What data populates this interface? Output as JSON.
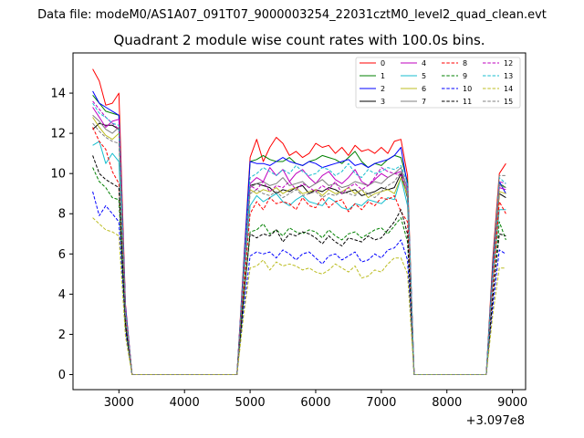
{
  "figure": {
    "suptitle": "Data file: modeM0/AS1A07_091T07_9000003254_22031cztM0_level2_quad_clean.evt"
  },
  "chart_data": {
    "type": "line",
    "title": "Quadrant 2 module wise count rates with 100.0s bins.",
    "xlabel": "",
    "ylabel": "",
    "x_offset_label": "+3.097e8",
    "xlim": [
      2300,
      9200
    ],
    "ylim": [
      -0.75,
      16
    ],
    "xticks": [
      3000,
      4000,
      5000,
      6000,
      7000,
      8000,
      9000
    ],
    "yticks": [
      0,
      2,
      4,
      6,
      8,
      10,
      12,
      14
    ],
    "grid": false,
    "legend_position": "top-right",
    "legend_columns": 4,
    "x": [
      2600,
      2700,
      2800,
      2900,
      3000,
      3100,
      3200,
      3300,
      3400,
      3500,
      3600,
      3700,
      3800,
      3900,
      4000,
      4100,
      4200,
      4300,
      4400,
      4500,
      4600,
      4700,
      4800,
      4900,
      5000,
      5100,
      5200,
      5300,
      5400,
      5500,
      5600,
      5700,
      5800,
      5900,
      6000,
      6100,
      6200,
      6300,
      6400,
      6500,
      6600,
      6700,
      6800,
      6900,
      7000,
      7100,
      7200,
      7300,
      7400,
      7500,
      7600,
      7700,
      7800,
      7900,
      8000,
      8100,
      8200,
      8300,
      8400,
      8500,
      8600,
      8700,
      8800,
      8900
    ],
    "series": [
      {
        "name": "0",
        "color": "#ff0000",
        "dash": "solid",
        "values": [
          15.2,
          14.6,
          13.4,
          13.5,
          14.0,
          3.5,
          0,
          0,
          0,
          0,
          0,
          0,
          0,
          0,
          0,
          0,
          0,
          0,
          0,
          0,
          0,
          0,
          0,
          5.5,
          10.8,
          11.7,
          10.6,
          11.3,
          11.8,
          11.5,
          10.9,
          11.1,
          10.8,
          11.0,
          11.5,
          11.3,
          11.4,
          11.0,
          11.3,
          10.9,
          11.4,
          11.1,
          11.2,
          11.0,
          11.3,
          11.0,
          11.6,
          11.7,
          9.9,
          0,
          0,
          0,
          0,
          0,
          0,
          0,
          0,
          0,
          0,
          0,
          0,
          5.8,
          10.0,
          10.5
        ]
      },
      {
        "name": "1",
        "color": "#008000",
        "dash": "solid",
        "values": [
          13.9,
          13.5,
          13.1,
          13.0,
          12.9,
          3.3,
          0,
          0,
          0,
          0,
          0,
          0,
          0,
          0,
          0,
          0,
          0,
          0,
          0,
          0,
          0,
          0,
          0,
          5.2,
          10.6,
          10.7,
          10.9,
          10.7,
          10.6,
          10.6,
          10.8,
          10.5,
          10.4,
          10.6,
          10.7,
          10.9,
          10.8,
          10.7,
          10.5,
          10.8,
          11.1,
          10.6,
          10.3,
          10.5,
          10.4,
          10.7,
          10.9,
          10.8,
          9.6,
          0,
          0,
          0,
          0,
          0,
          0,
          0,
          0,
          0,
          0,
          0,
          0,
          5.5,
          9.5,
          9.3
        ]
      },
      {
        "name": "2",
        "color": "#0000ff",
        "dash": "solid",
        "values": [
          14.1,
          13.5,
          13.3,
          13.1,
          12.9,
          3.4,
          0,
          0,
          0,
          0,
          0,
          0,
          0,
          0,
          0,
          0,
          0,
          0,
          0,
          0,
          0,
          0,
          0,
          5.3,
          10.6,
          10.5,
          10.5,
          10.4,
          10.6,
          10.8,
          10.6,
          10.5,
          10.4,
          10.6,
          10.5,
          10.3,
          10.4,
          10.5,
          10.6,
          10.7,
          10.4,
          10.5,
          10.3,
          10.5,
          10.6,
          10.7,
          10.9,
          11.3,
          9.4,
          0,
          0,
          0,
          0,
          0,
          0,
          0,
          0,
          0,
          0,
          0,
          0,
          5.4,
          9.6,
          9.0
        ]
      },
      {
        "name": "3",
        "color": "#000000",
        "dash": "solid",
        "values": [
          12.2,
          12.5,
          12.4,
          12.4,
          12.2,
          3.1,
          0,
          0,
          0,
          0,
          0,
          0,
          0,
          0,
          0,
          0,
          0,
          0,
          0,
          0,
          0,
          0,
          0,
          4.9,
          9.4,
          9.5,
          9.4,
          9.3,
          9.0,
          9.2,
          9.1,
          9.3,
          9.4,
          9.0,
          9.2,
          9.1,
          9.3,
          9.2,
          9.0,
          9.1,
          9.2,
          8.9,
          9.0,
          9.1,
          9.3,
          9.2,
          9.3,
          10.0,
          8.8,
          0,
          0,
          0,
          0,
          0,
          0,
          0,
          0,
          0,
          0,
          0,
          0,
          5.0,
          9.0,
          8.8
        ]
      },
      {
        "name": "4",
        "color": "#bf00bf",
        "dash": "solid",
        "values": [
          13.3,
          12.8,
          12.3,
          12.6,
          12.7,
          3.2,
          0,
          0,
          0,
          0,
          0,
          0,
          0,
          0,
          0,
          0,
          0,
          0,
          0,
          0,
          0,
          0,
          0,
          5.0,
          9.5,
          9.8,
          9.6,
          10.3,
          9.9,
          10.2,
          9.6,
          10.0,
          10.2,
          9.8,
          9.5,
          9.9,
          10.1,
          9.7,
          9.5,
          9.8,
          10.2,
          9.6,
          9.4,
          9.7,
          10.0,
          9.8,
          10.0,
          10.1,
          9.3,
          0,
          0,
          0,
          0,
          0,
          0,
          0,
          0,
          0,
          0,
          0,
          0,
          5.1,
          9.3,
          9.2
        ]
      },
      {
        "name": "5",
        "color": "#17becf",
        "dash": "solid",
        "values": [
          11.4,
          11.6,
          10.5,
          11.0,
          10.6,
          3.0,
          0,
          0,
          0,
          0,
          0,
          0,
          0,
          0,
          0,
          0,
          0,
          0,
          0,
          0,
          0,
          0,
          0,
          4.5,
          8.4,
          8.9,
          8.6,
          8.8,
          9.0,
          8.6,
          8.4,
          8.7,
          8.9,
          8.6,
          8.5,
          8.4,
          8.8,
          8.6,
          8.3,
          8.2,
          8.5,
          8.4,
          8.7,
          8.6,
          8.5,
          8.8,
          8.7,
          9.8,
          8.4,
          0,
          0,
          0,
          0,
          0,
          0,
          0,
          0,
          0,
          0,
          0,
          0,
          4.7,
          8.2,
          8.2
        ]
      },
      {
        "name": "6",
        "color": "#bcbd22",
        "dash": "solid",
        "values": [
          12.8,
          12.3,
          11.9,
          11.7,
          12.0,
          3.1,
          0,
          0,
          0,
          0,
          0,
          0,
          0,
          0,
          0,
          0,
          0,
          0,
          0,
          0,
          0,
          0,
          0,
          4.8,
          9.2,
          9.0,
          9.2,
          9.1,
          9.3,
          9.0,
          9.2,
          9.3,
          9.0,
          9.1,
          9.2,
          8.9,
          9.2,
          9.0,
          9.1,
          9.3,
          9.0,
          9.2,
          8.8,
          9.0,
          9.1,
          9.2,
          9.0,
          9.8,
          8.9,
          0,
          0,
          0,
          0,
          0,
          0,
          0,
          0,
          0,
          0,
          0,
          0,
          4.9,
          9.1,
          9.0
        ]
      },
      {
        "name": "7",
        "color": "#7f7f7f",
        "dash": "solid",
        "values": [
          12.9,
          12.6,
          12.2,
          12.0,
          12.3,
          3.2,
          0,
          0,
          0,
          0,
          0,
          0,
          0,
          0,
          0,
          0,
          0,
          0,
          0,
          0,
          0,
          0,
          0,
          5.0,
          9.3,
          9.5,
          9.6,
          9.4,
          9.5,
          9.8,
          9.4,
          9.5,
          9.6,
          9.3,
          9.5,
          9.7,
          9.4,
          9.5,
          9.3,
          9.4,
          9.6,
          9.5,
          9.4,
          9.6,
          9.5,
          9.8,
          10.0,
          10.3,
          9.2,
          0,
          0,
          0,
          0,
          0,
          0,
          0,
          0,
          0,
          0,
          0,
          0,
          5.1,
          9.4,
          9.3
        ]
      },
      {
        "name": "8",
        "color": "#ff0000",
        "dash": "dashed",
        "values": [
          12.3,
          11.6,
          11.2,
          10.1,
          9.5,
          2.6,
          0,
          0,
          0,
          0,
          0,
          0,
          0,
          0,
          0,
          0,
          0,
          0,
          0,
          0,
          0,
          0,
          0,
          4.2,
          8.0,
          8.6,
          8.2,
          8.8,
          8.5,
          8.6,
          8.5,
          8.2,
          8.8,
          8.4,
          8.3,
          8.8,
          8.3,
          8.6,
          8.7,
          8.1,
          8.5,
          8.2,
          8.6,
          8.4,
          8.8,
          8.7,
          8.9,
          8.1,
          7.6,
          0,
          0,
          0,
          0,
          0,
          0,
          0,
          0,
          0,
          0,
          0,
          0,
          4.4,
          8.6,
          8.0
        ]
      },
      {
        "name": "9",
        "color": "#008000",
        "dash": "dashed",
        "values": [
          10.3,
          9.6,
          9.3,
          8.8,
          8.7,
          2.4,
          0,
          0,
          0,
          0,
          0,
          0,
          0,
          0,
          0,
          0,
          0,
          0,
          0,
          0,
          0,
          0,
          0,
          3.7,
          7.1,
          7.2,
          7.5,
          7.0,
          7.2,
          6.9,
          7.3,
          7.1,
          7.0,
          7.2,
          7.1,
          6.8,
          7.2,
          6.9,
          6.7,
          7.0,
          7.1,
          6.8,
          7.0,
          7.2,
          7.3,
          7.0,
          7.4,
          7.8,
          6.6,
          0,
          0,
          0,
          0,
          0,
          0,
          0,
          0,
          0,
          0,
          0,
          0,
          3.8,
          7.6,
          6.7
        ]
      },
      {
        "name": "10",
        "color": "#0000ff",
        "dash": "dashed",
        "values": [
          9.1,
          7.9,
          8.4,
          8.0,
          7.6,
          2.2,
          0,
          0,
          0,
          0,
          0,
          0,
          0,
          0,
          0,
          0,
          0,
          0,
          0,
          0,
          0,
          0,
          0,
          3.2,
          5.9,
          6.1,
          6.0,
          6.1,
          5.8,
          6.2,
          6.0,
          5.7,
          6.0,
          6.1,
          5.8,
          5.5,
          5.9,
          6.0,
          5.7,
          5.9,
          6.1,
          5.6,
          5.7,
          6.0,
          5.8,
          6.2,
          6.3,
          6.7,
          5.7,
          0,
          0,
          0,
          0,
          0,
          0,
          0,
          0,
          0,
          0,
          0,
          0,
          3.4,
          6.2,
          6.0
        ]
      },
      {
        "name": "11",
        "color": "#000000",
        "dash": "dashed",
        "values": [
          10.9,
          10.0,
          9.7,
          9.5,
          9.3,
          2.5,
          0,
          0,
          0,
          0,
          0,
          0,
          0,
          0,
          0,
          0,
          0,
          0,
          0,
          0,
          0,
          0,
          0,
          3.8,
          7.0,
          6.8,
          7.0,
          6.9,
          7.2,
          6.6,
          7.0,
          6.9,
          7.1,
          7.0,
          6.8,
          6.5,
          6.9,
          6.6,
          6.4,
          6.8,
          6.7,
          6.6,
          6.9,
          6.7,
          6.8,
          7.2,
          7.6,
          8.2,
          7.0,
          0,
          0,
          0,
          0,
          0,
          0,
          0,
          0,
          0,
          0,
          0,
          0,
          3.9,
          7.0,
          6.9
        ]
      },
      {
        "name": "12",
        "color": "#bf00bf",
        "dash": "dashed",
        "values": [
          13.6,
          13.2,
          12.8,
          12.5,
          12.2,
          3.1,
          0,
          0,
          0,
          0,
          0,
          0,
          0,
          0,
          0,
          0,
          0,
          0,
          0,
          0,
          0,
          0,
          0,
          4.9,
          9.4,
          9.2,
          9.6,
          9.1,
          9.4,
          9.3,
          9.6,
          9.2,
          9.5,
          9.3,
          9.1,
          9.4,
          9.2,
          9.6,
          9.0,
          9.3,
          9.5,
          9.2,
          9.4,
          9.8,
          10.3,
          10.1,
          10.0,
          9.9,
          9.1,
          0,
          0,
          0,
          0,
          0,
          0,
          0,
          0,
          0,
          0,
          0,
          0,
          5.0,
          9.6,
          9.5
        ]
      },
      {
        "name": "13",
        "color": "#17becf",
        "dash": "dashed",
        "values": [
          13.5,
          13.0,
          12.8,
          12.5,
          12.4,
          3.2,
          0,
          0,
          0,
          0,
          0,
          0,
          0,
          0,
          0,
          0,
          0,
          0,
          0,
          0,
          0,
          0,
          0,
          5.1,
          9.8,
          10.0,
          10.3,
          10.1,
          9.9,
          10.2,
          10.0,
          10.4,
          10.1,
          9.9,
          10.0,
          10.3,
          10.2,
          9.9,
          10.1,
          10.5,
          10.0,
          9.8,
          10.2,
          10.0,
          10.1,
          10.3,
          10.2,
          10.4,
          9.5,
          0,
          0,
          0,
          0,
          0,
          0,
          0,
          0,
          0,
          0,
          0,
          0,
          5.2,
          9.8,
          9.5
        ]
      },
      {
        "name": "14",
        "color": "#bcbd22",
        "dash": "dashed",
        "values": [
          7.8,
          7.5,
          7.2,
          7.1,
          6.9,
          1.9,
          0,
          0,
          0,
          0,
          0,
          0,
          0,
          0,
          0,
          0,
          0,
          0,
          0,
          0,
          0,
          0,
          0,
          2.9,
          5.3,
          5.4,
          5.7,
          5.2,
          5.6,
          5.4,
          5.5,
          5.4,
          5.2,
          5.3,
          5.1,
          5.0,
          5.2,
          5.5,
          5.3,
          5.1,
          5.4,
          4.8,
          4.9,
          5.2,
          5.1,
          5.5,
          5.8,
          5.8,
          5.0,
          0,
          0,
          0,
          0,
          0,
          0,
          0,
          0,
          0,
          0,
          0,
          0,
          3.0,
          5.3,
          5.3
        ]
      },
      {
        "name": "15",
        "color": "#7f7f7f",
        "dash": "dashed",
        "values": [
          12.5,
          12.1,
          11.8,
          11.6,
          11.5,
          3.0,
          0,
          0,
          0,
          0,
          0,
          0,
          0,
          0,
          0,
          0,
          0,
          0,
          0,
          0,
          0,
          0,
          0,
          4.7,
          9.0,
          9.2,
          9.0,
          8.9,
          9.1,
          8.8,
          9.0,
          9.2,
          8.9,
          9.0,
          9.1,
          8.8,
          9.0,
          8.9,
          9.1,
          9.0,
          8.9,
          9.2,
          9.0,
          8.8,
          9.1,
          9.4,
          9.6,
          10.1,
          9.0,
          0,
          0,
          0,
          0,
          0,
          0,
          0,
          0,
          0,
          0,
          0,
          0,
          4.8,
          9.9,
          9.9
        ]
      }
    ]
  }
}
